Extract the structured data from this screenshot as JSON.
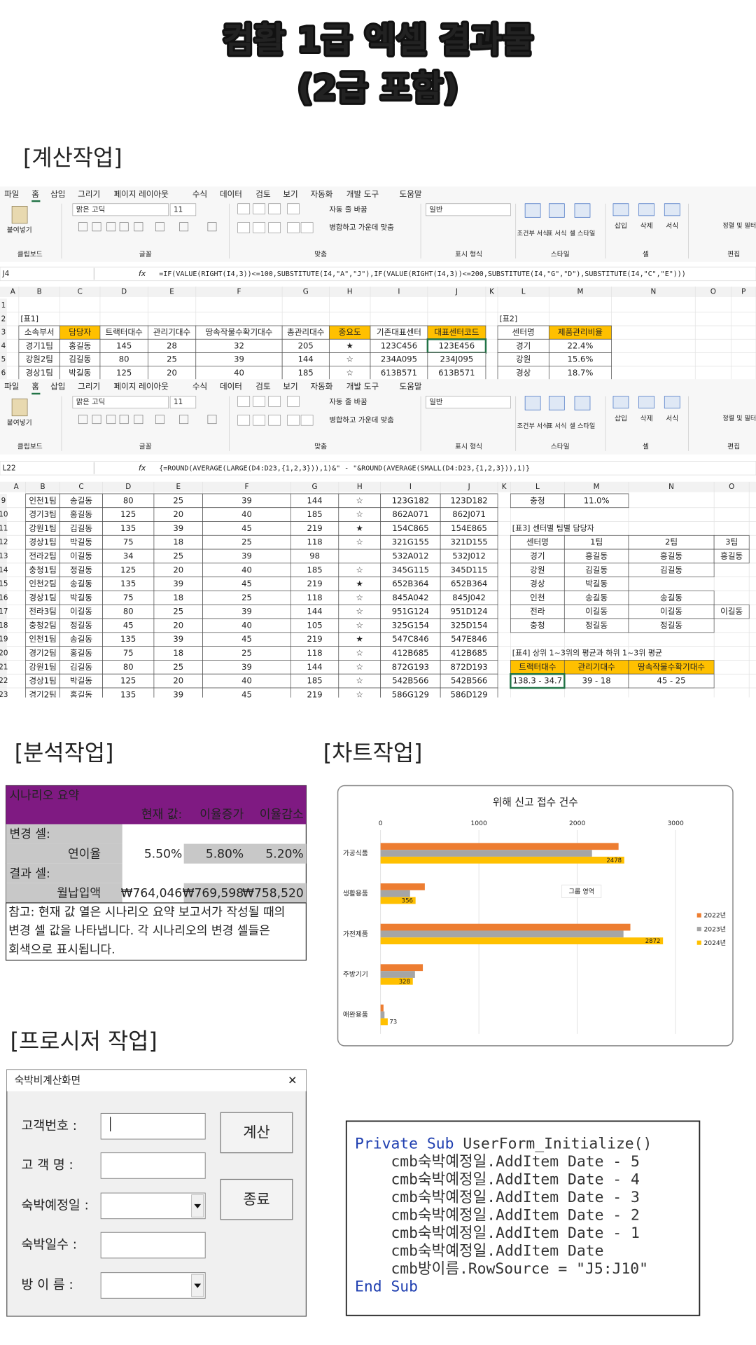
{
  "header": {
    "title": "컴활 1급 엑셀 결과물",
    "subtitle": "(2급 포함)"
  },
  "sections": {
    "calc": "[계산작업]",
    "analysis": "[분석작업]",
    "chart": "[차트작업]",
    "procedure": "[프로시저 작업]"
  },
  "ribbon": {
    "tabs": [
      "파일",
      "홈",
      "삽입",
      "그리기",
      "페이지 레이아웃",
      "수식",
      "데이터",
      "검토",
      "보기",
      "자동화",
      "개발 도구",
      "도움말"
    ],
    "groups": [
      "클립보드",
      "글꼴",
      "맞춤",
      "표시 형식",
      "스타일",
      "셀",
      "편집"
    ],
    "controls": {
      "paste": "붙여넣기",
      "font": "맑은 고딕",
      "size": "11",
      "wrap": "자동 줄 바꿈",
      "merge": "병합하고 가운데 맞춤",
      "number_format": "일반",
      "conditional": "조건부 서식",
      "table_format": "표 서식",
      "cell_style": "셀 스타일",
      "insert": "삽입",
      "delete": "삭제",
      "format": "서식",
      "sort": "정렬 및 필터"
    },
    "fx": "fx"
  },
  "sheet1": {
    "name_box": "J4",
    "formula": "=IF(VALUE(RIGHT(I4,3))<=100,SUBSTITUTE(I4,\"A\",\"J\"),IF(VALUE(RIGHT(I4,3))<=200,SUBSTITUTE(I4,\"G\",\"D\"),SUBSTITUTE(I4,\"C\",\"E\")))",
    "columns": [
      "A",
      "B",
      "C",
      "D",
      "E",
      "F",
      "G",
      "H",
      "I",
      "J",
      "K",
      "L",
      "M",
      "N",
      "O",
      "P"
    ],
    "rows": [
      {
        "n": "1",
        "cells": {}
      },
      {
        "n": "2",
        "cells": {
          "B": "[표1]",
          "L": "[표2]"
        }
      },
      {
        "n": "3",
        "cells": {
          "B": "소속부서",
          "C": "담당자",
          "D": "트랙터대수",
          "E": "관리기대수",
          "F": "땅속작물수확기대수",
          "G": "총관리대수",
          "H": "중요도",
          "I": "기존대표센터",
          "J": "대표센터코드",
          "L": "센터명",
          "M": "제품관리비율"
        }
      },
      {
        "n": "4",
        "cells": {
          "B": "경기1팀",
          "C": "홍길동",
          "D": "145",
          "E": "28",
          "F": "32",
          "G": "205",
          "H": "★",
          "I": "123C456",
          "J": "123E456",
          "L": "경기",
          "M": "22.4%"
        }
      },
      {
        "n": "5",
        "cells": {
          "B": "강원2팀",
          "C": "김길동",
          "D": "80",
          "E": "25",
          "F": "39",
          "G": "144",
          "H": "☆",
          "I": "234A095",
          "J": "234J095",
          "L": "강원",
          "M": "15.6%"
        }
      },
      {
        "n": "6",
        "cells": {
          "B": "경상1팀",
          "C": "박길동",
          "D": "125",
          "E": "20",
          "F": "40",
          "G": "185",
          "H": "☆",
          "I": "613B571",
          "J": "613B571",
          "L": "경상",
          "M": "18.7%"
        }
      }
    ]
  },
  "sheet2": {
    "name_box": "L22",
    "formula": "{=ROUND(AVERAGE(LARGE(D4:D23,{1,2,3})),1)&\" - \"&ROUND(AVERAGE(SMALL(D4:D23,{1,2,3})),1)}",
    "columns": [
      "A",
      "B",
      "C",
      "D",
      "E",
      "F",
      "G",
      "H",
      "I",
      "J",
      "K",
      "L",
      "M",
      "N",
      "O"
    ],
    "rows": [
      {
        "n": "9",
        "cells": {
          "B": "인천1팀",
          "C": "송길동",
          "D": "80",
          "E": "25",
          "F": "39",
          "G": "144",
          "H": "☆",
          "I": "123G182",
          "J": "123D182",
          "L": "충청",
          "M": "11.0%"
        }
      },
      {
        "n": "10",
        "cells": {
          "B": "경기3팀",
          "C": "홍길동",
          "D": "125",
          "E": "20",
          "F": "40",
          "G": "185",
          "H": "☆",
          "I": "862A071",
          "J": "862J071"
        }
      },
      {
        "n": "11",
        "cells": {
          "B": "강원1팀",
          "C": "김길동",
          "D": "135",
          "E": "39",
          "F": "45",
          "G": "219",
          "H": "★",
          "I": "154C865",
          "J": "154E865",
          "L": "[표3] 센터별 팀별 담당자"
        }
      },
      {
        "n": "12",
        "cells": {
          "B": "경상1팀",
          "C": "박길동",
          "D": "75",
          "E": "18",
          "F": "25",
          "G": "118",
          "H": "☆",
          "I": "321G155",
          "J": "321D155",
          "L": "센터명",
          "M": "1팀",
          "N": "2팀",
          "O": "3팀"
        }
      },
      {
        "n": "13",
        "cells": {
          "B": "전라2팀",
          "C": "이길동",
          "D": "34",
          "E": "25",
          "F": "39",
          "G": "98",
          "I": "532A012",
          "J": "532J012",
          "L": "경기",
          "M": "홍길동",
          "N": "홍길동",
          "O": "홍길동"
        }
      },
      {
        "n": "14",
        "cells": {
          "B": "충청1팀",
          "C": "정길동",
          "D": "125",
          "E": "20",
          "F": "40",
          "G": "185",
          "H": "☆",
          "I": "345G115",
          "J": "345D115",
          "L": "강원",
          "M": "김길동",
          "N": "김길동"
        }
      },
      {
        "n": "15",
        "cells": {
          "B": "인천2팀",
          "C": "송길동",
          "D": "135",
          "E": "39",
          "F": "45",
          "G": "219",
          "H": "★",
          "I": "652B364",
          "J": "652B364",
          "L": "경상",
          "M": "박길동"
        }
      },
      {
        "n": "16",
        "cells": {
          "B": "경상1팀",
          "C": "박길동",
          "D": "75",
          "E": "18",
          "F": "25",
          "G": "118",
          "H": "☆",
          "I": "845A042",
          "J": "845J042",
          "L": "인천",
          "M": "송길동",
          "N": "송길동"
        }
      },
      {
        "n": "17",
        "cells": {
          "B": "전라3팀",
          "C": "이길동",
          "D": "80",
          "E": "25",
          "F": "39",
          "G": "144",
          "H": "☆",
          "I": "951G124",
          "J": "951D124",
          "L": "전라",
          "M": "이길동",
          "N": "이길동",
          "O": "이길동"
        }
      },
      {
        "n": "18",
        "cells": {
          "B": "충청2팀",
          "C": "정길동",
          "D": "45",
          "E": "20",
          "F": "40",
          "G": "105",
          "H": "☆",
          "I": "325G154",
          "J": "325D154",
          "L": "충청",
          "M": "정길동",
          "N": "정길동"
        }
      },
      {
        "n": "19",
        "cells": {
          "B": "인천1팀",
          "C": "송길동",
          "D": "135",
          "E": "39",
          "F": "45",
          "G": "219",
          "H": "★",
          "I": "547C846",
          "J": "547E846"
        }
      },
      {
        "n": "20",
        "cells": {
          "B": "경기2팀",
          "C": "홍길동",
          "D": "75",
          "E": "18",
          "F": "25",
          "G": "118",
          "H": "☆",
          "I": "412B685",
          "J": "412B685",
          "L": "[표4] 상위 1~3위의 평균과 하위 1~3위 평균"
        }
      },
      {
        "n": "21",
        "cells": {
          "B": "강원1팀",
          "C": "김길동",
          "D": "80",
          "E": "25",
          "F": "39",
          "G": "144",
          "H": "☆",
          "I": "872G193",
          "J": "872D193",
          "L": "트랙터대수",
          "M": "관리기대수",
          "N": "땅속작물수확기대수"
        }
      },
      {
        "n": "22",
        "cells": {
          "B": "경상1팀",
          "C": "박길동",
          "D": "125",
          "E": "20",
          "F": "40",
          "G": "185",
          "H": "☆",
          "I": "542B566",
          "J": "542B566",
          "L": "138.3 - 34.7",
          "M": "39 - 18",
          "N": "45 - 25"
        }
      },
      {
        "n": "23",
        "cells": {
          "B": "경기2팀",
          "C": "홍길동",
          "D": "135",
          "E": "39",
          "F": "45",
          "G": "219",
          "H": "☆",
          "I": "586G129",
          "J": "586D129"
        }
      }
    ]
  },
  "scenario": {
    "title": "시나리오 요약",
    "headers": [
      "현재 값:",
      "이율증가",
      "이율감소"
    ],
    "changing_label": "변경 셀:",
    "changing": {
      "name": "연이율",
      "values": [
        "5.50%",
        "5.80%",
        "5.20%"
      ]
    },
    "result_label": "결과 셀:",
    "result": {
      "name": "월납입액",
      "values": [
        "₩764,046",
        "₩769,598",
        "₩758,520"
      ]
    },
    "note": [
      "참고: 현재 값 열은 시나리오 요약 보고서가 작성될 때의",
      "변경 셀 값을 나타냅니다. 각 시나리오의 변경 셀들은",
      "회색으로 표시됩니다."
    ]
  },
  "form": {
    "title": "숙박비계산화면",
    "close": "✕",
    "labels": [
      "고객번호 :",
      "고 객 명 :",
      "숙박예정일 :",
      "숙박일수 :",
      "방 이 름 :"
    ],
    "buttons": [
      "계산",
      "종료"
    ]
  },
  "code": {
    "lines": [
      [
        {
          "text": "Private Sub",
          "keyword": true
        },
        {
          "text": " UserForm_Initialize()"
        }
      ],
      [
        {
          "text": "    cmb숙박예정일.AddItem Date - 5"
        }
      ],
      [
        {
          "text": "    cmb숙박예정일.AddItem Date - 4"
        }
      ],
      [
        {
          "text": "    cmb숙박예정일.AddItem Date - 3"
        }
      ],
      [
        {
          "text": "    cmb숙박예정일.AddItem Date - 2"
        }
      ],
      [
        {
          "text": "    cmb숙박예정일.AddItem Date - 1"
        }
      ],
      [
        {
          "text": "    cmb숙박예정일.AddItem Date"
        }
      ],
      [
        {
          "text": "    cmb방이름.RowSource = \"J5:J10\""
        }
      ],
      [
        {
          "text": "End Sub",
          "keyword": true
        }
      ]
    ]
  },
  "chart_data": {
    "type": "bar",
    "orientation": "horizontal",
    "title": "위해 신고 접수 건수",
    "annotation": "그룹 영역",
    "categories": [
      "가공식품",
      "생활용품",
      "가전제품",
      "주방기기",
      "애완용품"
    ],
    "series": [
      {
        "name": "2022년",
        "color": "#ed7d31",
        "values": [
          2420,
          450,
          2540,
          430,
          30
        ]
      },
      {
        "name": "2023년",
        "color": "#a5a5a5",
        "values": [
          2150,
          300,
          2470,
          350,
          40
        ]
      },
      {
        "name": "2024년",
        "color": "#ffc000",
        "values": [
          2478,
          356,
          2872,
          328,
          73
        ],
        "data_labels": true
      }
    ],
    "xlim": [
      0,
      3000
    ],
    "xticks": [
      0,
      1000,
      2000,
      3000
    ],
    "grid": true,
    "legend": "right"
  }
}
